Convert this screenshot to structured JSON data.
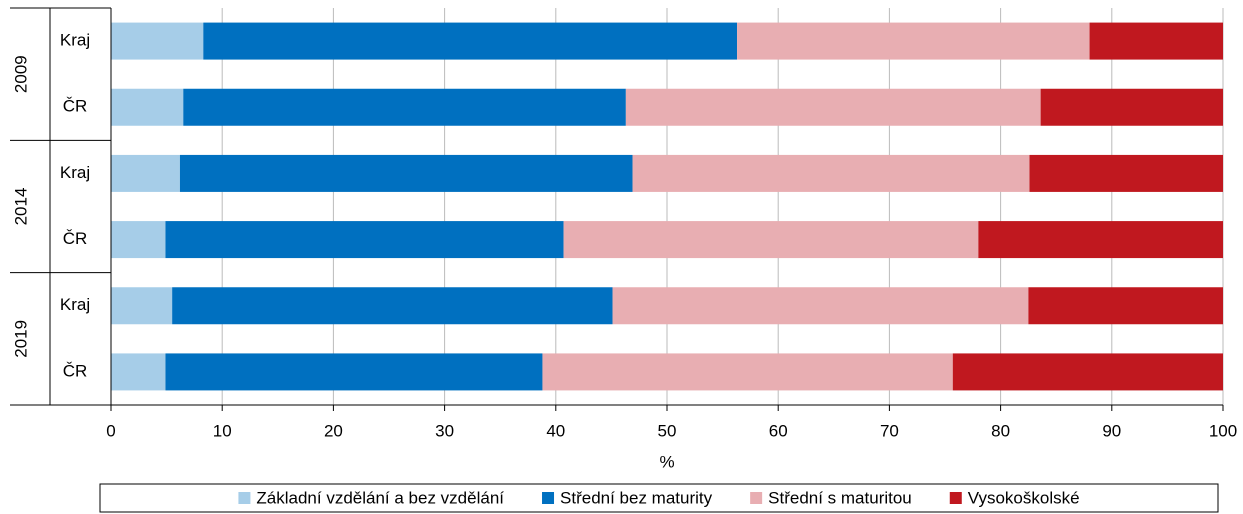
{
  "chart_data": {
    "type": "stacked_bar_horizontal",
    "categories": [
      "Kraj",
      "ČR",
      "Kraj",
      "ČR",
      "Kraj",
      "ČR"
    ],
    "groups": [
      "2009",
      "2014",
      "2019"
    ],
    "series": [
      {
        "name": "Základní vzdělání a bez vzdělání",
        "color": "#a6cde8",
        "values": [
          8.3,
          6.5,
          6.2,
          4.9,
          5.5,
          4.9
        ]
      },
      {
        "name": "Střední bez maturity",
        "color": "#0070c0",
        "values": [
          48.0,
          39.8,
          40.7,
          35.8,
          39.6,
          33.9
        ]
      },
      {
        "name": "Střední s maturitou",
        "color": "#e8aeb2",
        "values": [
          31.7,
          37.3,
          35.7,
          37.3,
          37.4,
          36.9
        ]
      },
      {
        "name": "Vysokoškolské",
        "color": "#c0181f",
        "values": [
          12.0,
          16.4,
          17.4,
          22.0,
          17.5,
          24.3
        ]
      }
    ],
    "xlabel": "%",
    "xlim": [
      0,
      100
    ],
    "xticks": [
      0,
      10,
      20,
      30,
      40,
      50,
      60,
      70,
      80,
      90,
      100
    ],
    "grid": true,
    "legend": "bottom"
  }
}
